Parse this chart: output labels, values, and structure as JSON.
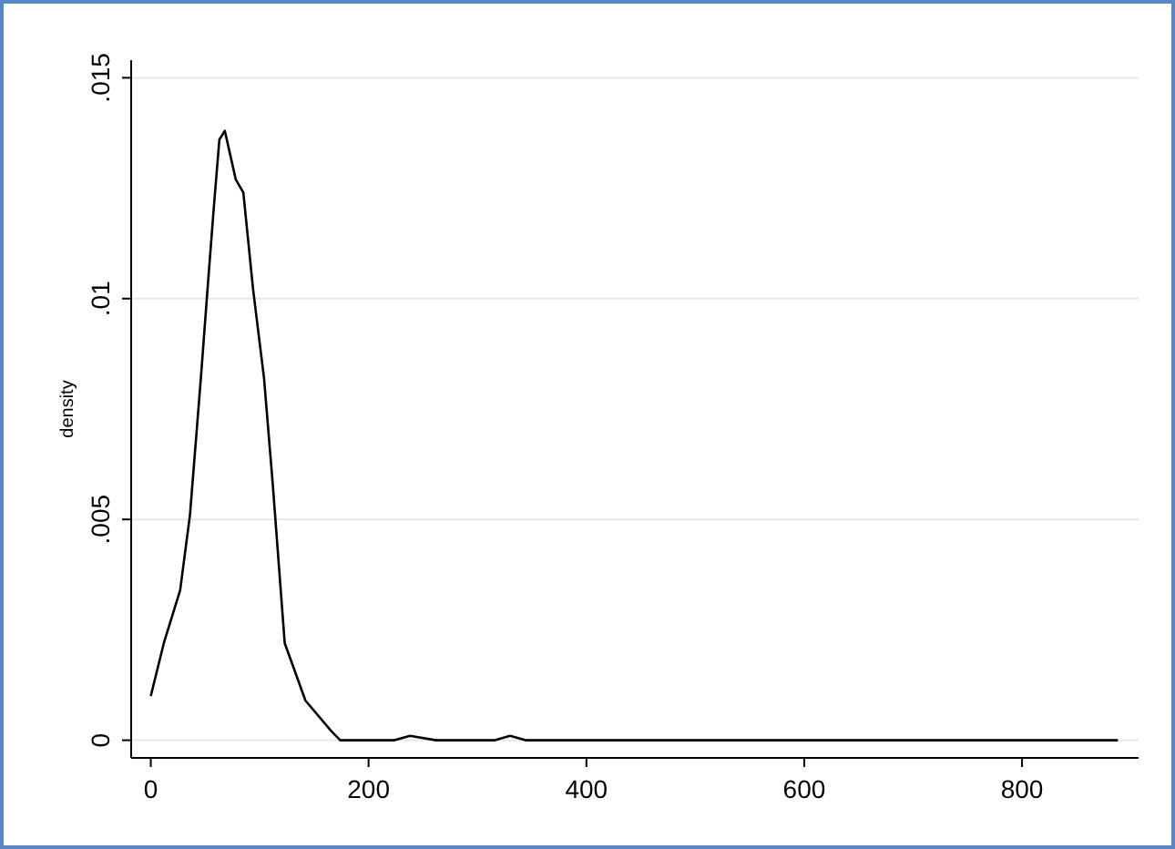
{
  "chart_data": {
    "type": "line",
    "ylabel": "density",
    "xlim": [
      -18,
      907
    ],
    "ylim": [
      -0.0004,
      0.0154
    ],
    "xticks": [
      0,
      200,
      400,
      600,
      800
    ],
    "yticks": [
      {
        "value": 0,
        "label": "0"
      },
      {
        "value": 0.005,
        "label": ".005"
      },
      {
        "value": 0.01,
        "label": ".01"
      },
      {
        "value": 0.015,
        "label": ".015"
      }
    ],
    "grid": "y",
    "series": [
      {
        "color": "#000000",
        "x": [
          0,
          12,
          27,
          36,
          46,
          53,
          58,
          63,
          68,
          78,
          85,
          94,
          104,
          112,
          123,
          142,
          166,
          174,
          217,
          224,
          238,
          262,
          268,
          316,
          330,
          344,
          888
        ],
        "values": [
          0.001,
          0.0022,
          0.0034,
          0.0051,
          0.0082,
          0.0105,
          0.0121,
          0.0136,
          0.0138,
          0.0127,
          0.0124,
          0.0102,
          0.0082,
          0.0058,
          0.0022,
          0.0009,
          0.0002,
          0,
          0,
          0,
          0.0001,
          0,
          0,
          0,
          0.0001,
          0,
          0
        ]
      }
    ]
  }
}
